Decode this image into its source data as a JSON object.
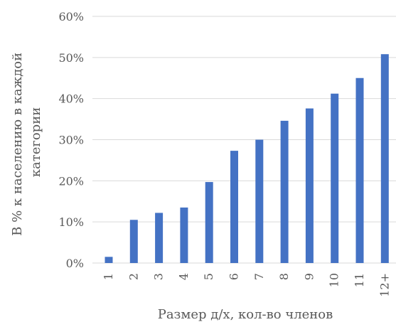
{
  "chart_data": {
    "type": "bar",
    "title": "",
    "xlabel": "Размер д/х, кол-во членов",
    "ylabel": "В % к населению в каждой категории",
    "ylabel_lines": [
      "В % к населению в каждой",
      "категории"
    ],
    "categories": [
      "1",
      "2",
      "3",
      "4",
      "5",
      "6",
      "7",
      "8",
      "9",
      "10",
      "11",
      "12+"
    ],
    "values": [
      1.5,
      10.5,
      12.2,
      13.5,
      19.7,
      27.3,
      30.0,
      34.6,
      37.6,
      41.2,
      45.0,
      50.8
    ],
    "yticks": [
      "0%",
      "10%",
      "20%",
      "30%",
      "40%",
      "50%",
      "60%"
    ],
    "ylim": [
      0,
      60
    ],
    "grid": true,
    "legend": "none",
    "colors": {
      "bar": "#4472C4",
      "grid": "#D9D9D9",
      "text": "#595959"
    }
  }
}
